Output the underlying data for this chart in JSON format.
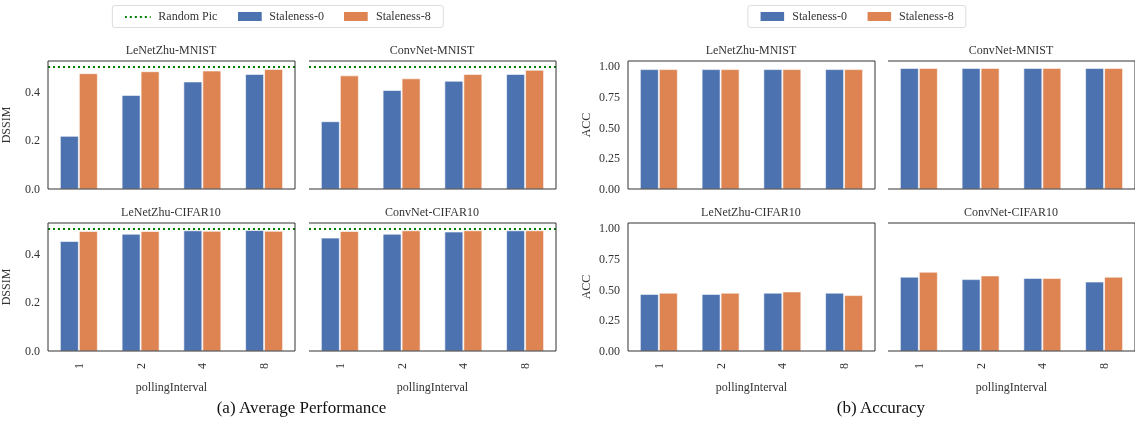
{
  "chart_data": [
    {
      "type": "bar",
      "title": "LeNetZhu-MNIST",
      "ylabel": "DSSIM",
      "categories": [
        "1",
        "2",
        "4",
        "8"
      ],
      "legend": "top",
      "annotations": [
        "(a) Average Performance"
      ],
      "tick_labels": "y",
      "ylim": [
        0,
        0.525
      ],
      "yticks": [
        {
          "value": 0,
          "label": "0.0"
        },
        0.2,
        0.4
      ],
      "ref_lines": [
        {
          "axis": "y",
          "value": 0.5,
          "label": "Random Pic",
          "color": "#008000",
          "line_style": "dotted"
        }
      ],
      "series": [
        {
          "name": "Staleness-0",
          "color": "#4c72b0",
          "values": [
            0.216,
            0.384,
            0.439,
            0.47
          ]
        },
        {
          "name": "Staleness-8",
          "color": "#dd8452",
          "values": [
            0.473,
            0.481,
            0.484,
            0.49
          ]
        }
      ]
    },
    {
      "type": "bar",
      "title": "ConvNet-MNIST",
      "categories": [
        "1",
        "2",
        "4",
        "8"
      ],
      "tick_labels": false,
      "ylim": [
        0,
        0.525
      ],
      "yticks": [
        0,
        0.2,
        0.4
      ],
      "ref_lines": [
        {
          "axis": "y",
          "value": 0.5,
          "color": "#008000",
          "line_style": "dotted"
        }
      ],
      "series": [
        {
          "color": "#4c72b0",
          "values": [
            0.276,
            0.404,
            0.442,
            0.47
          ]
        },
        {
          "color": "#dd8452",
          "values": [
            0.464,
            0.452,
            0.47,
            0.487
          ]
        }
      ]
    },
    {
      "type": "bar",
      "title": "LeNetZhu-CIFAR10",
      "ylabel": "DSSIM",
      "xlabel": "pollingInterval",
      "categories": [
        "1",
        "2",
        "4",
        "8"
      ],
      "ylim": [
        0,
        0.525
      ],
      "yticks": [
        {
          "value": 0,
          "label": "0.0"
        },
        0.2,
        0.4
      ],
      "ref_lines": [
        {
          "axis": "y",
          "value": 0.5,
          "color": "#008000",
          "line_style": "dotted"
        }
      ],
      "series": [
        {
          "color": "#4c72b0",
          "values": [
            0.449,
            0.479,
            0.493,
            0.494
          ]
        },
        {
          "color": "#dd8452",
          "values": [
            0.49,
            0.49,
            0.491,
            0.491
          ]
        }
      ]
    },
    {
      "type": "bar",
      "title": "ConvNet-CIFAR10",
      "xlabel": "pollingInterval",
      "categories": [
        "1",
        "2",
        "4",
        "8"
      ],
      "tick_labels": "x",
      "ylim": [
        0,
        0.525
      ],
      "yticks": [
        0,
        0.2,
        0.4
      ],
      "ref_lines": [
        {
          "axis": "y",
          "value": 0.5,
          "color": "#008000",
          "line_style": "dotted"
        }
      ],
      "series": [
        {
          "color": "#4c72b0",
          "values": [
            0.463,
            0.479,
            0.488,
            0.493
          ]
        },
        {
          "color": "#dd8452",
          "values": [
            0.49,
            0.493,
            0.493,
            0.493
          ]
        }
      ]
    },
    {
      "type": "bar",
      "title": "LeNetZhu-MNIST",
      "ylabel": "ACC",
      "categories": [
        "1",
        "2",
        "4",
        "8"
      ],
      "legend": "top",
      "annotations": [
        "(b) Accuracy"
      ],
      "tick_labels": "y",
      "ylim": [
        0,
        1.04
      ],
      "yticks": [
        {
          "value": 0,
          "label": "0.00"
        },
        0.25,
        {
          "value": 0.5,
          "label": "0.50"
        },
        0.75,
        {
          "value": 1,
          "label": "1.00"
        }
      ],
      "series": [
        {
          "name": "Staleness-0",
          "color": "#4c72b0",
          "values": [
            0.97,
            0.97,
            0.97,
            0.97
          ]
        },
        {
          "name": "Staleness-8",
          "color": "#dd8452",
          "values": [
            0.97,
            0.97,
            0.97,
            0.97
          ]
        }
      ]
    },
    {
      "type": "bar",
      "title": "ConvNet-MNIST",
      "categories": [
        "1",
        "2",
        "4",
        "8"
      ],
      "tick_labels": false,
      "ylim": [
        0,
        1.04
      ],
      "yticks": [
        0,
        0.25,
        0.5,
        0.75,
        1
      ],
      "series": [
        {
          "color": "#4c72b0",
          "values": [
            0.98,
            0.98,
            0.98,
            0.98
          ]
        },
        {
          "color": "#dd8452",
          "values": [
            0.98,
            0.98,
            0.98,
            0.98
          ]
        }
      ]
    },
    {
      "type": "bar",
      "title": "LeNetZhu-CIFAR10",
      "ylabel": "ACC",
      "xlabel": "pollingInterval",
      "categories": [
        "1",
        "2",
        "4",
        "8"
      ],
      "ylim": [
        0,
        1.04
      ],
      "yticks": [
        {
          "value": 0,
          "label": "0.00"
        },
        0.25,
        {
          "value": 0.5,
          "label": "0.50"
        },
        0.75,
        {
          "value": 1,
          "label": "1.00"
        }
      ],
      "series": [
        {
          "color": "#4c72b0",
          "values": [
            0.46,
            0.46,
            0.47,
            0.47
          ]
        },
        {
          "color": "#dd8452",
          "values": [
            0.47,
            0.47,
            0.48,
            0.45
          ]
        }
      ]
    },
    {
      "type": "bar",
      "title": "ConvNet-CIFAR10",
      "xlabel": "pollingInterval",
      "categories": [
        "1",
        "2",
        "4",
        "8"
      ],
      "tick_labels": "x",
      "ylim": [
        0,
        1.04
      ],
      "yticks": [
        0,
        0.25,
        0.5,
        0.75,
        1
      ],
      "series": [
        {
          "color": "#4c72b0",
          "values": [
            0.6,
            0.58,
            0.59,
            0.56
          ]
        },
        {
          "color": "#dd8452",
          "values": [
            0.64,
            0.61,
            0.59,
            0.6
          ]
        }
      ]
    }
  ]
}
